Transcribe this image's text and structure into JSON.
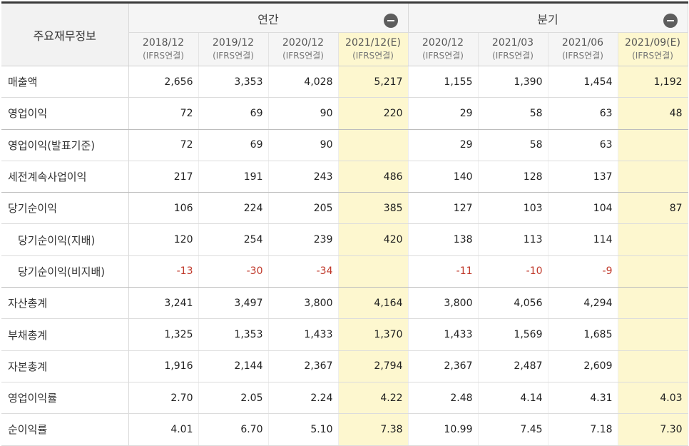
{
  "table": {
    "corner_label": "주요재무정보",
    "groups": [
      {
        "label": "연간",
        "toggle_icon": "collapse-minus-icon"
      },
      {
        "label": "분기",
        "toggle_icon": "collapse-minus-icon"
      }
    ],
    "periods": [
      {
        "date": "2018/12",
        "basis": "(IFRS연결)",
        "estimate": false
      },
      {
        "date": "2019/12",
        "basis": "(IFRS연결)",
        "estimate": false
      },
      {
        "date": "2020/12",
        "basis": "(IFRS연결)",
        "estimate": false
      },
      {
        "date": "2021/12(E)",
        "basis": "(IFRS연결)",
        "estimate": true
      },
      {
        "date": "2020/12",
        "basis": "(IFRS연결)",
        "estimate": false
      },
      {
        "date": "2021/03",
        "basis": "(IFRS연결)",
        "estimate": false
      },
      {
        "date": "2021/06",
        "basis": "(IFRS연결)",
        "estimate": false
      },
      {
        "date": "2021/09(E)",
        "basis": "(IFRS연결)",
        "estimate": true
      }
    ],
    "rows": [
      {
        "label": "매출액",
        "indent": false,
        "values": [
          "2,656",
          "3,353",
          "4,028",
          "5,217",
          "1,155",
          "1,390",
          "1,454",
          "1,192"
        ]
      },
      {
        "label": "영업이익",
        "indent": false,
        "values": [
          "72",
          "69",
          "90",
          "220",
          "29",
          "58",
          "63",
          "48"
        ]
      },
      {
        "label": "영업이익(발표기준)",
        "indent": false,
        "values": [
          "72",
          "69",
          "90",
          "",
          "29",
          "58",
          "63",
          ""
        ]
      },
      {
        "label": "세전계속사업이익",
        "indent": false,
        "values": [
          "217",
          "191",
          "243",
          "486",
          "140",
          "128",
          "137",
          ""
        ]
      },
      {
        "label": "당기순이익",
        "indent": false,
        "values": [
          "106",
          "224",
          "205",
          "385",
          "127",
          "103",
          "104",
          "87"
        ]
      },
      {
        "label": "당기순이익(지배)",
        "indent": true,
        "values": [
          "120",
          "254",
          "239",
          "420",
          "138",
          "113",
          "114",
          ""
        ]
      },
      {
        "label": "당기순이익(비지배)",
        "indent": true,
        "values": [
          "-13",
          "-30",
          "-34",
          "",
          "-11",
          "-10",
          "-9",
          ""
        ]
      },
      {
        "label": "자산총계",
        "indent": false,
        "values": [
          "3,241",
          "3,497",
          "3,800",
          "4,164",
          "3,800",
          "4,056",
          "4,294",
          ""
        ]
      },
      {
        "label": "부채총계",
        "indent": false,
        "values": [
          "1,325",
          "1,353",
          "1,433",
          "1,370",
          "1,433",
          "1,569",
          "1,685",
          ""
        ]
      },
      {
        "label": "자본총계",
        "indent": false,
        "values": [
          "1,916",
          "2,144",
          "2,367",
          "2,794",
          "2,367",
          "2,487",
          "2,609",
          ""
        ]
      },
      {
        "label": "영업이익률",
        "indent": false,
        "values": [
          "2.70",
          "2.05",
          "2.24",
          "4.22",
          "2.48",
          "4.14",
          "4.31",
          "4.03"
        ]
      },
      {
        "label": "순이익률",
        "indent": false,
        "values": [
          "4.01",
          "6.70",
          "5.10",
          "7.38",
          "10.99",
          "7.45",
          "7.18",
          "7.30"
        ]
      }
    ]
  },
  "colors": {
    "estimate_bg": "#fdf7cf",
    "header_bg": "#f5f5f5",
    "negative_text": "#c0392b",
    "toggle_bg": "#5d5d5d"
  }
}
